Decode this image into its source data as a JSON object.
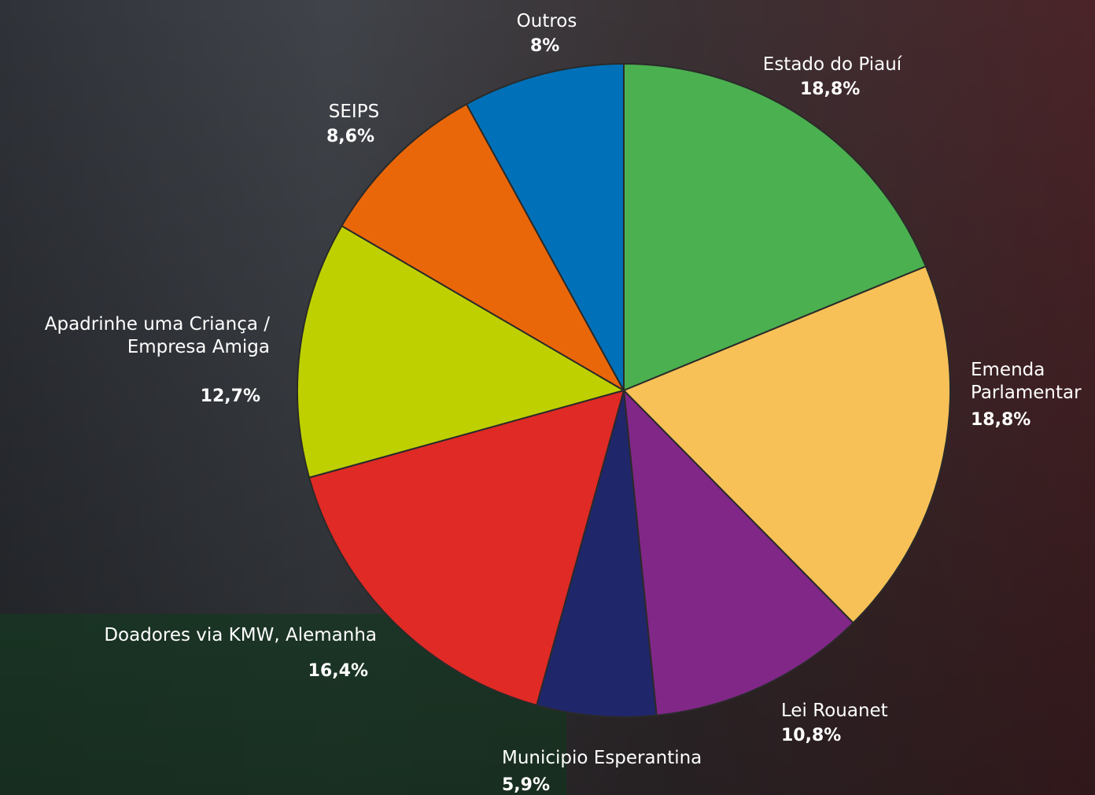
{
  "chart_data": {
    "type": "pie",
    "categories": [
      "Estado do Piauí",
      "Emenda Parlamentar",
      "Lei Rouanet",
      "Municipio Esperantina",
      "Doadores via KMW, Alemanha",
      "Apadrinhe uma Criança / Empresa Amiga",
      "SEIPS",
      "Outros"
    ],
    "values": [
      18.8,
      18.8,
      10.8,
      5.9,
      16.4,
      12.7,
      8.6,
      8
    ],
    "value_labels": [
      "18,8%",
      "18,8%",
      "10,8%",
      "5,9%",
      "16,4%",
      "12,7%",
      "8,6%",
      "8%"
    ],
    "colors": [
      "#4bb04f",
      "#f7c158",
      "#812788",
      "#20266a",
      "#e02a25",
      "#bfd000",
      "#ea6709",
      "#0071b9"
    ]
  }
}
